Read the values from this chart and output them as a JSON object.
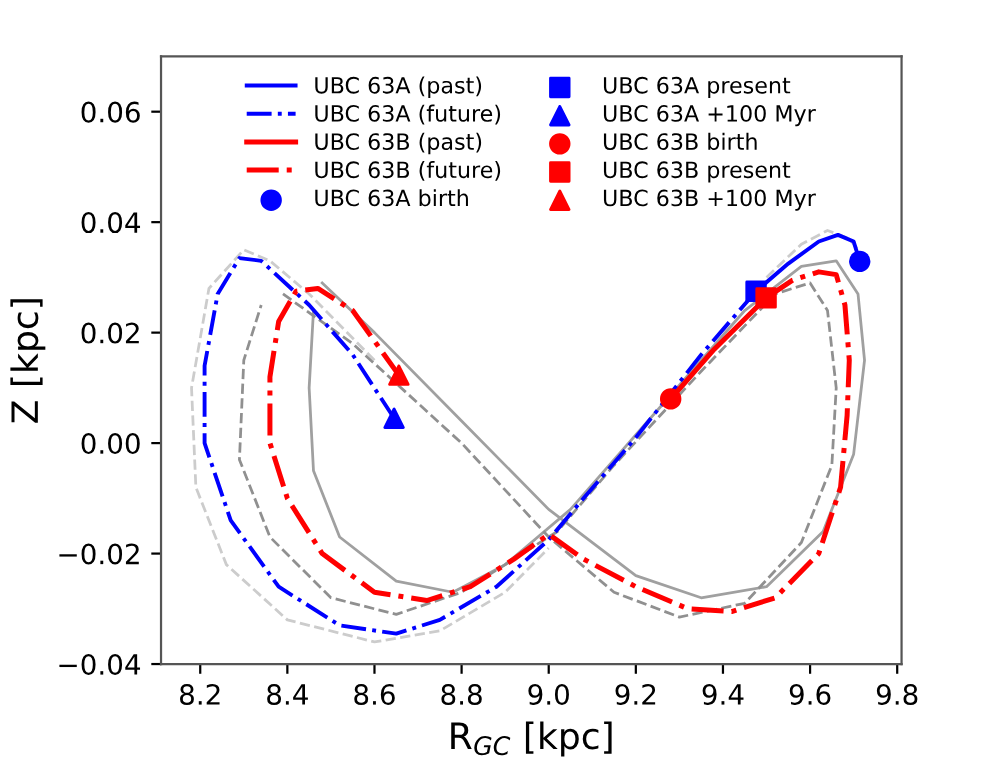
{
  "chart_data": {
    "type": "line",
    "xlabel": "R$_{GC}$ [kpc]",
    "ylabel": "Z [kpc]",
    "xlim": [
      8.11,
      9.81
    ],
    "ylim": [
      -0.04,
      0.07
    ],
    "xticks": [
      8.2,
      8.4,
      8.6,
      8.8,
      {
        "value": 9,
        "label": "9.0"
      },
      9.2,
      9.4,
      9.6,
      9.8
    ],
    "yticks": [
      {
        "value": -0.04,
        "label": "−0.04"
      },
      {
        "value": -0.02,
        "label": "−0.02"
      },
      {
        "value": 0,
        "label": "0.00"
      },
      {
        "value": 0.02,
        "label": "0.02"
      },
      {
        "value": 0.04,
        "label": "0.04"
      },
      {
        "value": 0.06,
        "label": "0.06"
      }
    ],
    "grid": false,
    "legend": "top",
    "series": [
      {
        "name": "UBC 63A (past)",
        "type": "line",
        "line_style": "solid",
        "color": "#0000ff",
        "x": [
          9.714,
          9.7,
          9.664,
          9.62,
          9.55,
          9.476
        ],
        "values": [
          0.0329,
          0.0365,
          0.0377,
          0.0365,
          0.0325,
          0.0275
        ]
      },
      {
        "name": "UBC 63A (future)",
        "type": "line",
        "line_style": "dashdot",
        "color": "#0000ff",
        "x": [
          9.476,
          9.35,
          9.2,
          9.08,
          9.0,
          8.88,
          8.75,
          8.65,
          8.52,
          8.38,
          8.27,
          8.21,
          8.21,
          8.24,
          8.29,
          8.34,
          8.45,
          8.55,
          8.645
        ],
        "values": [
          0.0275,
          0.016,
          0.001,
          -0.01,
          -0.0175,
          -0.026,
          -0.032,
          -0.0345,
          -0.033,
          -0.026,
          -0.014,
          0.0,
          0.014,
          0.027,
          0.0335,
          0.033,
          0.025,
          0.016,
          0.0045
        ]
      },
      {
        "name": "UBC 63B (past)",
        "type": "line",
        "line_style": "solid",
        "color": "#ff0000",
        "x": [
          9.28,
          9.38,
          9.499
        ],
        "values": [
          0.008,
          0.017,
          0.0263
        ]
      },
      {
        "name": "UBC 63B (future)",
        "type": "line",
        "line_style": "dashdot",
        "color": "#ff0000",
        "x": [
          9.499,
          9.56,
          9.62,
          9.66,
          9.68,
          9.69,
          9.685,
          9.67,
          9.62,
          9.52,
          9.42,
          9.32,
          9.2,
          9.08,
          9.0,
          8.92,
          8.82,
          8.72,
          8.6,
          8.48,
          8.4,
          8.36,
          8.36,
          8.38,
          8.42,
          8.47,
          8.55,
          8.656
        ],
        "values": [
          0.0263,
          0.0295,
          0.031,
          0.0305,
          0.025,
          0.015,
          0.005,
          -0.008,
          -0.02,
          -0.028,
          -0.0305,
          -0.03,
          -0.026,
          -0.021,
          -0.0165,
          -0.021,
          -0.026,
          -0.0285,
          -0.027,
          -0.02,
          -0.01,
          0.0,
          0.012,
          0.022,
          0.0275,
          0.028,
          0.024,
          0.0123
        ]
      },
      {
        "name": "UBC 63A birth",
        "type": "scatter",
        "marker": "circle",
        "color": "#0000ff",
        "x": [
          9.714
        ],
        "values": [
          0.0329
        ]
      },
      {
        "name": "UBC 63A present",
        "type": "scatter",
        "marker": "square",
        "color": "#0000ff",
        "x": [
          9.476
        ],
        "values": [
          0.0275
        ]
      },
      {
        "name": "UBC 63A +100 Myr",
        "type": "scatter",
        "marker": "triangle",
        "color": "#0000ff",
        "x": [
          8.645
        ],
        "values": [
          0.0045
        ]
      },
      {
        "name": "UBC 63B birth",
        "type": "scatter",
        "marker": "circle",
        "color": "#ff0000",
        "x": [
          9.28
        ],
        "values": [
          0.008
        ]
      },
      {
        "name": "UBC 63B present",
        "type": "scatter",
        "marker": "square",
        "color": "#ff0000",
        "x": [
          9.499
        ],
        "values": [
          0.0263
        ]
      },
      {
        "name": "UBC 63B +100 Myr",
        "type": "scatter",
        "marker": "triangle",
        "color": "#ff0000",
        "x": [
          8.656
        ],
        "values": [
          0.0123
        ]
      },
      {
        "line_style": "solid",
        "color": "#a0a0a0",
        "x": [
          8.48,
          8.6,
          8.8,
          9.0,
          9.2,
          9.35,
          9.5,
          9.63,
          9.7,
          9.725,
          9.71,
          9.66,
          9.58,
          9.45,
          9.25,
          9.05,
          8.9,
          8.78,
          8.65,
          8.52,
          8.46,
          8.45,
          8.46
        ],
        "values": [
          0.029,
          0.02,
          0.004,
          -0.012,
          -0.024,
          -0.028,
          -0.026,
          -0.016,
          -0.002,
          0.015,
          0.027,
          0.033,
          0.032,
          0.024,
          0.006,
          -0.012,
          -0.022,
          -0.027,
          -0.025,
          -0.017,
          -0.005,
          0.01,
          0.024
        ]
      },
      {
        "line_style": "dashed",
        "color": "#909090",
        "x": [
          8.39,
          8.55,
          8.8,
          9.0,
          9.15,
          9.3,
          9.45,
          9.58,
          9.65,
          9.66,
          9.64,
          9.6,
          9.52,
          9.35,
          9.15,
          9.02,
          8.8,
          8.65,
          8.5,
          8.36,
          8.29,
          8.3,
          8.34
        ],
        "values": [
          0.027,
          0.018,
          0.0,
          -0.017,
          -0.027,
          -0.0315,
          -0.029,
          -0.018,
          -0.004,
          0.01,
          0.024,
          0.029,
          0.027,
          0.013,
          -0.004,
          -0.016,
          -0.027,
          -0.031,
          -0.028,
          -0.017,
          -0.003,
          0.015,
          0.025
        ]
      },
      {
        "line_style": "dashed",
        "color": "#cccccc",
        "x": [
          8.6,
          8.45,
          8.36,
          8.3,
          8.22,
          8.18,
          8.19,
          8.26,
          8.4,
          8.6,
          8.75,
          8.9,
          9.0
        ],
        "values": [
          0.015,
          0.027,
          0.033,
          0.035,
          0.028,
          0.01,
          -0.008,
          -0.022,
          -0.032,
          -0.036,
          -0.034,
          -0.027,
          -0.019
        ]
      },
      {
        "line_style": "dashed",
        "color": "#cccccc",
        "x": [
          9.5,
          9.58,
          9.64,
          9.69,
          9.72
        ],
        "values": [
          0.03,
          0.036,
          0.0385,
          0.037,
          0.034
        ]
      }
    ]
  }
}
